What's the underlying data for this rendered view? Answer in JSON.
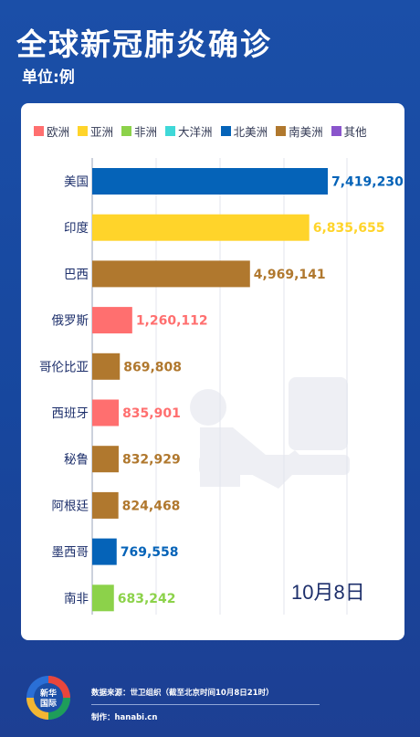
{
  "header": {
    "title": "全球新冠肺炎确诊",
    "unit": "单位:例"
  },
  "colors": {
    "欧洲": "#ff6f6f",
    "亚洲": "#ffd42a",
    "非洲": "#8cd24a",
    "大洋洲": "#3fd8d8",
    "北美洲": "#0563b8",
    "南美洲": "#b0782e",
    "其他": "#8a55cc"
  },
  "legend": [
    "欧洲",
    "亚洲",
    "非洲",
    "大洋洲",
    "北美洲",
    "南美洲",
    "其他"
  ],
  "chart_data": {
    "type": "bar",
    "orientation": "horizontal",
    "categories": [
      "美国",
      "印度",
      "巴西",
      "俄罗斯",
      "哥伦比亚",
      "西班牙",
      "秘鲁",
      "阿根廷",
      "墨西哥",
      "南非"
    ],
    "values": [
      7419230,
      6835655,
      4969141,
      1260112,
      869808,
      835901,
      832929,
      824468,
      769558,
      683242
    ],
    "value_labels": [
      "7,419,230",
      "6,835,655",
      "4,969,141",
      "1,260,112",
      "869,808",
      "835,901",
      "832,929",
      "824,468",
      "769,558",
      "683,242"
    ],
    "regions": [
      "北美洲",
      "亚洲",
      "南美洲",
      "欧洲",
      "南美洲",
      "欧洲",
      "南美洲",
      "南美洲",
      "北美洲",
      "非洲"
    ],
    "grid": true,
    "legend_position": "top"
  },
  "date_label": "10月8日",
  "footer": {
    "source": "数据来源：世卫组织（截至北京时间10月8日21时）",
    "maker": "制作：hanabi.cn",
    "logo_text_1": "新华",
    "logo_text_2": "国际"
  }
}
